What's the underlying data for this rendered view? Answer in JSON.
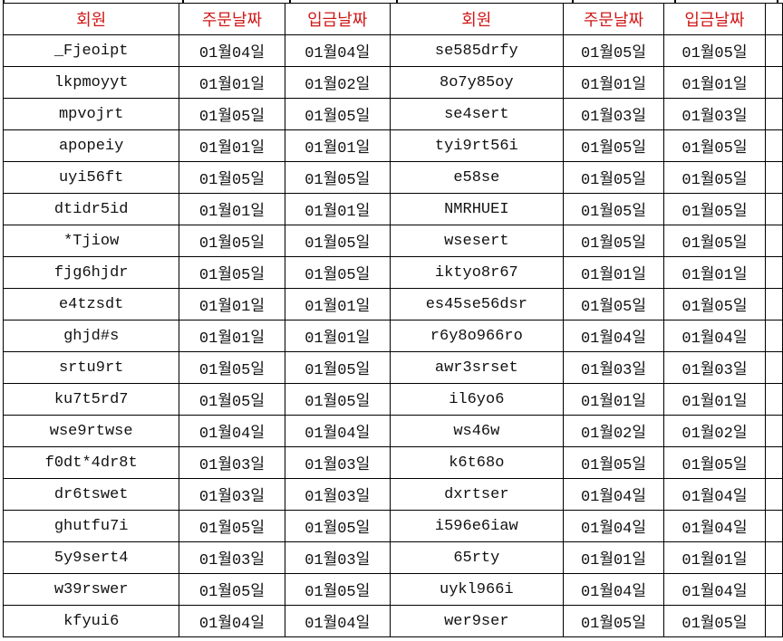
{
  "headers": [
    "회원",
    "주문날짜",
    "입금날짜",
    "회원",
    "주문날짜",
    "입금날짜"
  ],
  "header_color": "#d01818",
  "rows": [
    [
      "_Fjeoipt",
      "01월04일",
      "01월04일",
      "se585drfy",
      "01월05일",
      "01월05일"
    ],
    [
      "lkpmoyyt",
      "01월01일",
      "01월02일",
      "8o7y85oy",
      "01월01일",
      "01월01일"
    ],
    [
      "mpvojrt",
      "01월05일",
      "01월05일",
      "se4sert",
      "01월03일",
      "01월03일"
    ],
    [
      "apopeiy",
      "01월01일",
      "01월01일",
      "tyi9rt56i",
      "01월05일",
      "01월05일"
    ],
    [
      "uyi56ft",
      "01월05일",
      "01월05일",
      "e58se",
      "01월05일",
      "01월05일"
    ],
    [
      "dtidr5id",
      "01월01일",
      "01월01일",
      "NMRHUEI",
      "01월05일",
      "01월05일"
    ],
    [
      "*Tjiow",
      "01월05일",
      "01월05일",
      "wsesert",
      "01월05일",
      "01월05일"
    ],
    [
      "fjg6hjdr",
      "01월05일",
      "01월05일",
      "iktyo8r67",
      "01월01일",
      "01월01일"
    ],
    [
      "e4tzsdt",
      "01월01일",
      "01월01일",
      "es45se56dsr",
      "01월05일",
      "01월05일"
    ],
    [
      "ghjd#s",
      "01월01일",
      "01월01일",
      "r6y8o966ro",
      "01월04일",
      "01월04일"
    ],
    [
      "srtu9rt",
      "01월05일",
      "01월05일",
      "awr3srset",
      "01월03일",
      "01월03일"
    ],
    [
      "ku7t5rd7",
      "01월05일",
      "01월05일",
      "il6yo6",
      "01월01일",
      "01월01일"
    ],
    [
      "wse9rtwse",
      "01월04일",
      "01월04일",
      "ws46w",
      "01월02일",
      "01월02일"
    ],
    [
      "f0dt*4dr8t",
      "01월03일",
      "01월03일",
      "k6t68o",
      "01월05일",
      "01월05일"
    ],
    [
      "dr6tswet",
      "01월03일",
      "01월03일",
      "dxrtser",
      "01월04일",
      "01월04일"
    ],
    [
      "ghutfu7i",
      "01월05일",
      "01월05일",
      "i596e6iaw",
      "01월04일",
      "01월04일"
    ],
    [
      "5y9sert4",
      "01월03일",
      "01월03일",
      "65rty",
      "01월01일",
      "01월01일"
    ],
    [
      "w39rswer",
      "01월05일",
      "01월05일",
      "uykl966i",
      "01월04일",
      "01월04일"
    ],
    [
      "kfyui6",
      "01월04일",
      "01월04일",
      "wer9ser",
      "01월05일",
      "01월05일"
    ]
  ]
}
